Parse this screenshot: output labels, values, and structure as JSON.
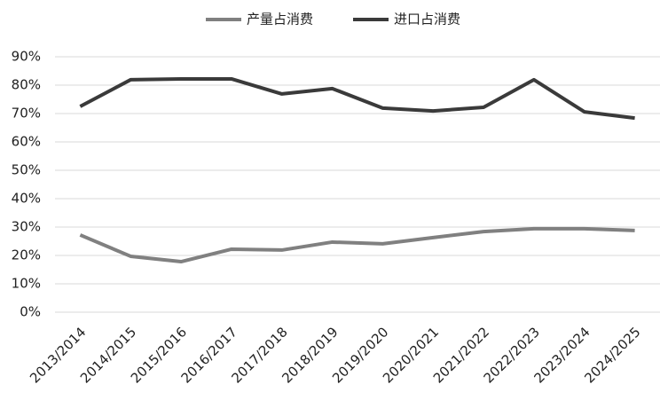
{
  "chart_data": {
    "type": "line",
    "categories": [
      "2013/2014",
      "2014/2015",
      "2015/2016",
      "2016/2017",
      "2017/2018",
      "2018/2019",
      "2019/2020",
      "2020/2021",
      "2021/2022",
      "2022/2023",
      "2023/2024",
      "2024/2025"
    ],
    "series": [
      {
        "name": "产量占消费",
        "color": "#808080",
        "values": [
          27.2,
          19.7,
          17.8,
          22.2,
          21.9,
          24.7,
          24.1,
          26.3,
          28.4,
          29.4,
          29.4,
          28.8
        ]
      },
      {
        "name": "进口占消费",
        "color": "#3a3a3a",
        "values": [
          72.5,
          81.9,
          82.2,
          82.2,
          76.9,
          78.8,
          71.9,
          70.9,
          72.2,
          81.9,
          70.6,
          68.4
        ]
      }
    ],
    "ylim": [
      0,
      90
    ],
    "yticks": [
      {
        "value": 0,
        "label": "0%"
      },
      {
        "value": 10,
        "label": "10%"
      },
      {
        "value": 20,
        "label": "20%"
      },
      {
        "value": 30,
        "label": "30%"
      },
      {
        "value": 40,
        "label": "40%"
      },
      {
        "value": 50,
        "label": "50%"
      },
      {
        "value": 60,
        "label": "60%"
      },
      {
        "value": 70,
        "label": "70%"
      },
      {
        "value": 80,
        "label": "80%"
      },
      {
        "value": 90,
        "label": "90%"
      }
    ],
    "grid": true,
    "legend": "top"
  }
}
